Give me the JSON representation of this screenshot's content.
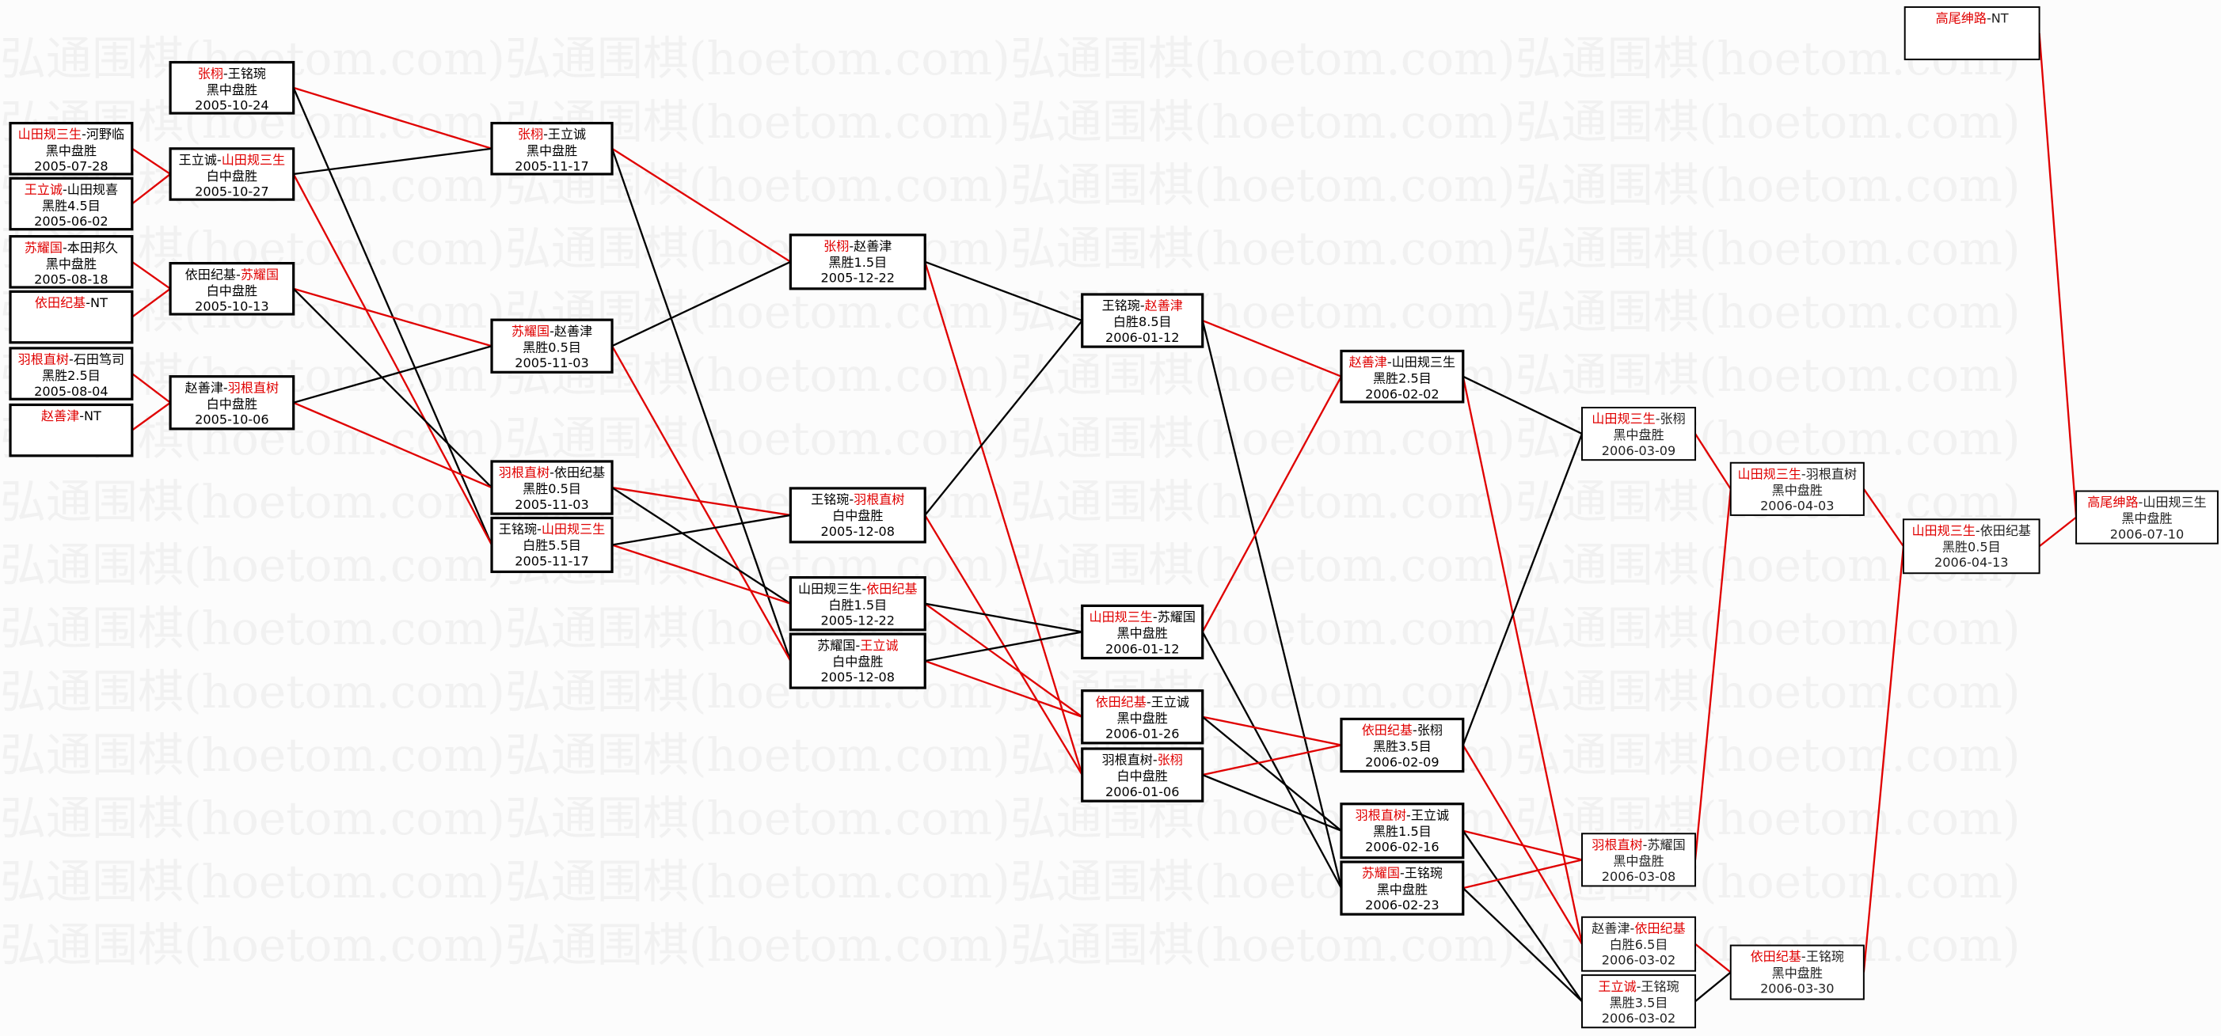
{
  "watermark": "弘通围棋(hoetom.com)",
  "colors": {
    "winner": "#e00000",
    "loser": "#000000",
    "box_border": "#000000",
    "background": "#fcfcfc"
  },
  "games": [
    {
      "id": "A1",
      "black": "山田规三生",
      "white": "河野临",
      "winner": "black",
      "result": "黑中盘胜",
      "date": "2005-07-28"
    },
    {
      "id": "A2",
      "black": "王立诚",
      "white": "山田规喜",
      "winner": "black",
      "result": "黑胜4.5目",
      "date": "2005-06-02"
    },
    {
      "id": "A3",
      "black": "苏耀国",
      "white": "本田邦久",
      "winner": "black",
      "result": "黑中盘胜",
      "date": "2005-08-18"
    },
    {
      "id": "A4",
      "black": "依田纪基",
      "white": "NT",
      "winner": "black",
      "result": "",
      "date": ""
    },
    {
      "id": "A5",
      "black": "羽根直树",
      "white": "石田笃司",
      "winner": "black",
      "result": "黑胜2.5目",
      "date": "2005-08-04"
    },
    {
      "id": "A6",
      "black": "赵善津",
      "white": "NT",
      "winner": "black",
      "result": "",
      "date": ""
    },
    {
      "id": "B1",
      "black": "张栩",
      "white": "王铭琬",
      "winner": "black",
      "result": "黑中盘胜",
      "date": "2005-10-24"
    },
    {
      "id": "B2",
      "black": "王立诚",
      "white": "山田规三生",
      "winner": "white",
      "result": "白中盘胜",
      "date": "2005-10-27"
    },
    {
      "id": "B3",
      "black": "依田纪基",
      "white": "苏耀国",
      "winner": "white",
      "result": "白中盘胜",
      "date": "2005-10-13"
    },
    {
      "id": "B4",
      "black": "赵善津",
      "white": "羽根直树",
      "winner": "white",
      "result": "白中盘胜",
      "date": "2005-10-06"
    },
    {
      "id": "C1",
      "black": "张栩",
      "white": "王立诚",
      "winner": "black",
      "result": "黑中盘胜",
      "date": "2005-11-17"
    },
    {
      "id": "C2",
      "black": "苏耀国",
      "white": "赵善津",
      "winner": "black",
      "result": "黑胜0.5目",
      "date": "2005-11-03"
    },
    {
      "id": "C3",
      "black": "羽根直树",
      "white": "依田纪基",
      "winner": "black",
      "result": "黑胜0.5目",
      "date": "2005-11-03"
    },
    {
      "id": "C4",
      "black": "王铭琬",
      "white": "山田规三生",
      "winner": "white",
      "result": "白胜5.5目",
      "date": "2005-11-17"
    },
    {
      "id": "D1",
      "black": "张栩",
      "white": "赵善津",
      "winner": "black",
      "result": "黑胜1.5目",
      "date": "2005-12-22"
    },
    {
      "id": "D2",
      "black": "王铭琬",
      "white": "羽根直树",
      "winner": "white",
      "result": "白中盘胜",
      "date": "2005-12-08"
    },
    {
      "id": "D3",
      "black": "山田规三生",
      "white": "依田纪基",
      "winner": "white",
      "result": "白胜1.5目",
      "date": "2005-12-22"
    },
    {
      "id": "D4",
      "black": "苏耀国",
      "white": "王立诚",
      "winner": "white",
      "result": "白中盘胜",
      "date": "2005-12-08"
    },
    {
      "id": "E1",
      "black": "王铭琬",
      "white": "赵善津",
      "winner": "white",
      "result": "白胜8.5目",
      "date": "2006-01-12"
    },
    {
      "id": "E2",
      "black": "山田规三生",
      "white": "苏耀国",
      "winner": "black",
      "result": "黑中盘胜",
      "date": "2006-01-12"
    },
    {
      "id": "E3",
      "black": "依田纪基",
      "white": "王立诚",
      "winner": "black",
      "result": "黑中盘胜",
      "date": "2006-01-26"
    },
    {
      "id": "E4",
      "black": "羽根直树",
      "white": "张栩",
      "winner": "white",
      "result": "白中盘胜",
      "date": "2006-01-06"
    },
    {
      "id": "F1",
      "black": "赵善津",
      "white": "山田规三生",
      "winner": "black",
      "result": "黑胜2.5目",
      "date": "2006-02-02"
    },
    {
      "id": "F2",
      "black": "依田纪基",
      "white": "张栩",
      "winner": "black",
      "result": "黑胜3.5目",
      "date": "2006-02-09"
    },
    {
      "id": "F3",
      "black": "羽根直树",
      "white": "王立诚",
      "winner": "black",
      "result": "黑胜1.5目",
      "date": "2006-02-16"
    },
    {
      "id": "F4",
      "black": "苏耀国",
      "white": "王铭琬",
      "winner": "black",
      "result": "黑中盘胜",
      "date": "2006-02-23"
    },
    {
      "id": "G1",
      "black": "山田规三生",
      "white": "张栩",
      "winner": "black",
      "result": "黑中盘胜",
      "date": "2006-03-09"
    },
    {
      "id": "G2",
      "black": "羽根直树",
      "white": "苏耀国",
      "winner": "black",
      "result": "黑中盘胜",
      "date": "2006-03-08"
    },
    {
      "id": "G3",
      "black": "赵善津",
      "white": "依田纪基",
      "winner": "white",
      "result": "白胜6.5目",
      "date": "2006-03-02"
    },
    {
      "id": "G4",
      "black": "王立诚",
      "white": "王铭琬",
      "winner": "black",
      "result": "黑胜3.5目",
      "date": "2006-03-02"
    },
    {
      "id": "H1",
      "black": "山田规三生",
      "white": "羽根直树",
      "winner": "black",
      "result": "黑中盘胜",
      "date": "2006-04-03"
    },
    {
      "id": "H2",
      "black": "依田纪基",
      "white": "王铭琬",
      "winner": "black",
      "result": "黑中盘胜",
      "date": "2006-03-30"
    },
    {
      "id": "I1",
      "black": "山田规三生",
      "white": "依田纪基",
      "winner": "black",
      "result": "黑胜0.5目",
      "date": "2006-04-13"
    },
    {
      "id": "J1",
      "black": "高尾绅路",
      "white": "山田规三生",
      "winner": "black",
      "result": "黑中盘胜",
      "date": "2006-07-10"
    },
    {
      "id": "K1",
      "black": "高尾绅路",
      "white": "NT",
      "winner": "black",
      "result": "",
      "date": ""
    }
  ],
  "edges": [
    {
      "from": "A1",
      "to": "B2",
      "type": "winner"
    },
    {
      "from": "A2",
      "to": "B2",
      "type": "winner"
    },
    {
      "from": "A3",
      "to": "B3",
      "type": "winner"
    },
    {
      "from": "A4",
      "to": "B3",
      "type": "winner"
    },
    {
      "from": "A5",
      "to": "B4",
      "type": "winner"
    },
    {
      "from": "A6",
      "to": "B4",
      "type": "winner"
    },
    {
      "from": "B1",
      "to": "C1",
      "type": "winner"
    },
    {
      "from": "B1",
      "to": "C4",
      "type": "loser"
    },
    {
      "from": "B2",
      "to": "C4",
      "type": "winner"
    },
    {
      "from": "B2",
      "to": "C1",
      "type": "loser"
    },
    {
      "from": "B3",
      "to": "C2",
      "type": "winner"
    },
    {
      "from": "B3",
      "to": "C3",
      "type": "loser"
    },
    {
      "from": "B4",
      "to": "C3",
      "type": "winner"
    },
    {
      "from": "B4",
      "to": "C2",
      "type": "loser"
    },
    {
      "from": "C1",
      "to": "D1",
      "type": "winner"
    },
    {
      "from": "C1",
      "to": "D4",
      "type": "loser"
    },
    {
      "from": "C2",
      "to": "D4",
      "type": "winner"
    },
    {
      "from": "C2",
      "to": "D1",
      "type": "loser"
    },
    {
      "from": "C3",
      "to": "D2",
      "type": "winner"
    },
    {
      "from": "C3",
      "to": "D3",
      "type": "loser"
    },
    {
      "from": "C4",
      "to": "D3",
      "type": "winner"
    },
    {
      "from": "C4",
      "to": "D2",
      "type": "loser"
    },
    {
      "from": "D1",
      "to": "E4",
      "type": "winner"
    },
    {
      "from": "D1",
      "to": "E1",
      "type": "loser"
    },
    {
      "from": "D2",
      "to": "E4",
      "type": "winner"
    },
    {
      "from": "D2",
      "to": "E1",
      "type": "loser"
    },
    {
      "from": "D3",
      "to": "E3",
      "type": "winner"
    },
    {
      "from": "D3",
      "to": "E2",
      "type": "loser"
    },
    {
      "from": "D4",
      "to": "E3",
      "type": "winner"
    },
    {
      "from": "D4",
      "to": "E2",
      "type": "loser"
    },
    {
      "from": "E1",
      "to": "F1",
      "type": "winner"
    },
    {
      "from": "E1",
      "to": "F4",
      "type": "loser"
    },
    {
      "from": "E2",
      "to": "F1",
      "type": "winner"
    },
    {
      "from": "E2",
      "to": "F4",
      "type": "loser"
    },
    {
      "from": "E3",
      "to": "F2",
      "type": "winner"
    },
    {
      "from": "E3",
      "to": "F3",
      "type": "loser"
    },
    {
      "from": "E4",
      "to": "F2",
      "type": "winner"
    },
    {
      "from": "E4",
      "to": "F3",
      "type": "loser"
    },
    {
      "from": "F1",
      "to": "G3",
      "type": "winner"
    },
    {
      "from": "F1",
      "to": "G1",
      "type": "loser"
    },
    {
      "from": "F2",
      "to": "G3",
      "type": "winner"
    },
    {
      "from": "F2",
      "to": "G1",
      "type": "loser"
    },
    {
      "from": "F3",
      "to": "G2",
      "type": "winner"
    },
    {
      "from": "F3",
      "to": "G4",
      "type": "loser"
    },
    {
      "from": "F4",
      "to": "G2",
      "type": "winner"
    },
    {
      "from": "F4",
      "to": "G4",
      "type": "loser"
    },
    {
      "from": "G1",
      "to": "H1",
      "type": "winner"
    },
    {
      "from": "G2",
      "to": "H1",
      "type": "winner"
    },
    {
      "from": "G3",
      "to": "H2",
      "type": "winner"
    },
    {
      "from": "G4",
      "to": "H2",
      "type": "loser"
    },
    {
      "from": "H1",
      "to": "I1",
      "type": "winner"
    },
    {
      "from": "H2",
      "to": "I1",
      "type": "winner"
    },
    {
      "from": "I1",
      "to": "J1",
      "type": "winner"
    },
    {
      "from": "K1",
      "to": "J1",
      "type": "winner"
    }
  ]
}
